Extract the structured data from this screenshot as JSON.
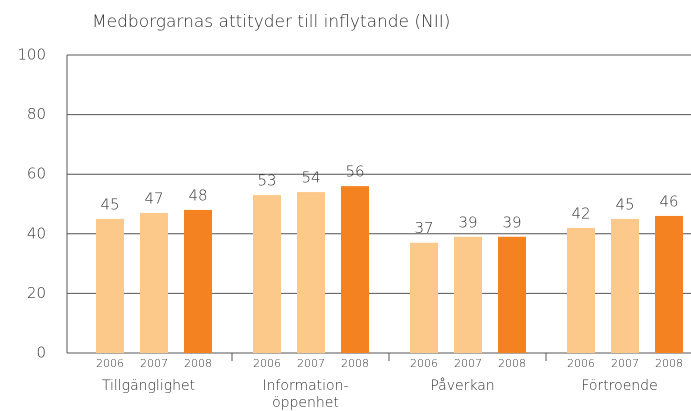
{
  "chart_data": {
    "type": "bar",
    "title": "Medborgarnas attityder till inflytande (NII)",
    "categories": [
      "Tillgänglighet",
      "Information-\nöppenhet",
      "Påverkan",
      "Förtroende"
    ],
    "series": [
      {
        "name": "2006",
        "color": "#fdc98b",
        "values": [
          45,
          53,
          37,
          42
        ]
      },
      {
        "name": "2007",
        "color": "#fdc98b",
        "values": [
          47,
          54,
          39,
          45
        ]
      },
      {
        "name": "2008",
        "color": "#f58220",
        "values": [
          48,
          56,
          39,
          46
        ]
      }
    ],
    "ylim": [
      0,
      100
    ],
    "yticks": [
      0,
      20,
      40,
      60,
      80,
      100
    ],
    "grid": true
  }
}
